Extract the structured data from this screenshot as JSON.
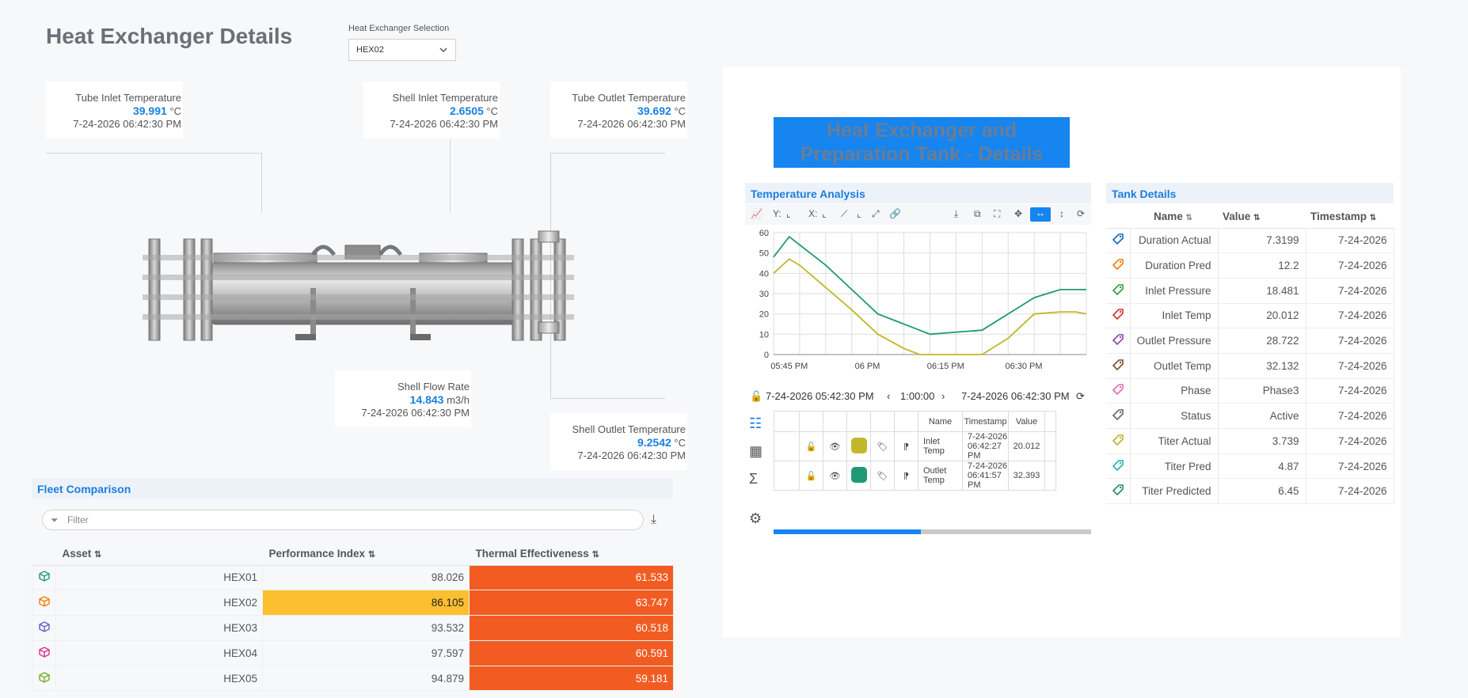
{
  "page": {
    "title": "Heat Exchanger Details"
  },
  "selection": {
    "label": "Heat Exchanger Selection",
    "value": "HEX02"
  },
  "callouts": {
    "tube_inlet": {
      "name": "Tube Inlet Temperature",
      "value": "39.991",
      "unit": "°C",
      "time": "7-24-2026 06:42:30 PM"
    },
    "shell_inlet": {
      "name": "Shell Inlet Temperature",
      "value": "2.6505",
      "unit": "°C",
      "time": "7-24-2026 06:42:30 PM"
    },
    "tube_outlet": {
      "name": "Tube Outlet Temperature",
      "value": "39.692",
      "unit": "°C",
      "time": "7-24-2026 06:42:30 PM"
    },
    "shell_flow": {
      "name": "Shell Flow Rate",
      "value": "14.843",
      "unit": "m3/h",
      "time": "7-24-2026 06:42:30 PM"
    },
    "shell_outlet": {
      "name": "Shell Outlet Temperature",
      "value": "9.2542",
      "unit": "°C",
      "time": "7-24-2026 06:42:30 PM"
    }
  },
  "banner": {
    "line1": "Heat Exchanger and",
    "line2": "Preparation Tank - Details"
  },
  "temperature": {
    "header": "Temperature Analysis",
    "toolbar": {
      "y": "Y:",
      "x": "X:"
    },
    "range": {
      "start": "7-24-2026 05:42:30 PM",
      "duration": "1:00:00",
      "end": "7-24-2026 06:42:30 PM"
    },
    "signals_header": {
      "name": "Name",
      "timestamp": "Timestamp",
      "value": "Value"
    },
    "signals": [
      {
        "name": "Inlet Temp",
        "timestamp": "7-24-2026 06:42:27 PM",
        "value": "20.012",
        "color": "#c2b72a"
      },
      {
        "name": "Outlet Temp",
        "timestamp": "7-24-2026 06:41:57 PM",
        "value": "32.393",
        "color": "#1e9a74"
      }
    ]
  },
  "chart_data": {
    "type": "line",
    "title": "",
    "xlabel": "",
    "ylabel": "",
    "ylim": [
      0,
      60
    ],
    "yticks": [
      0,
      10,
      20,
      30,
      40,
      50,
      60
    ],
    "xticks": [
      "05:45 PM",
      "06 PM",
      "06:15 PM",
      "06:30 PM"
    ],
    "x": [
      0,
      3,
      5,
      10,
      15,
      20,
      25,
      28,
      30,
      35,
      40,
      45,
      50,
      55,
      58,
      60
    ],
    "series": [
      {
        "name": "Inlet Temp",
        "color": "#c2b72a",
        "values": [
          40,
          47,
          44,
          33,
          22,
          10,
          3,
          0,
          0,
          0,
          0,
          8,
          20,
          21,
          21,
          20
        ]
      },
      {
        "name": "Outlet Temp",
        "color": "#1e9a74",
        "values": [
          48,
          58,
          54,
          44,
          32,
          20,
          15,
          12,
          10,
          11,
          12,
          20,
          28,
          32,
          32,
          32
        ]
      }
    ]
  },
  "tank": {
    "header": "Tank Details",
    "columns": {
      "name": "Name",
      "value": "Value",
      "timestamp": "Timestamp"
    },
    "rows": [
      {
        "name": "Duration Actual",
        "value": "7.3199",
        "timestamp": "7-24-2026",
        "color": "#1565c0"
      },
      {
        "name": "Duration Pred",
        "value": "12.2",
        "timestamp": "7-24-2026",
        "color": "#f57c00"
      },
      {
        "name": "Inlet Pressure",
        "value": "18.481",
        "timestamp": "7-24-2026",
        "color": "#2e9a3e"
      },
      {
        "name": "Inlet Temp",
        "value": "20.012",
        "timestamp": "7-24-2026",
        "color": "#d32f2f"
      },
      {
        "name": "Outlet Pressure",
        "value": "28.722",
        "timestamp": "7-24-2026",
        "color": "#8e44ad"
      },
      {
        "name": "Outlet Temp",
        "value": "32.132",
        "timestamp": "7-24-2026",
        "color": "#7b4b2a"
      },
      {
        "name": "Phase",
        "value": "Phase3",
        "timestamp": "7-24-2026",
        "color": "#e86ab0"
      },
      {
        "name": "Status",
        "value": "Active",
        "timestamp": "7-24-2026",
        "color": "#666666"
      },
      {
        "name": "Titer Actual",
        "value": "3.739",
        "timestamp": "7-24-2026",
        "color": "#b5b52a"
      },
      {
        "name": "Titer Pred",
        "value": "4.87",
        "timestamp": "7-24-2026",
        "color": "#20b2aa"
      },
      {
        "name": "Titer Predicted",
        "value": "6.45",
        "timestamp": "7-24-2026",
        "color": "#1e8a62"
      }
    ]
  },
  "fleet": {
    "header": "Fleet Comparison",
    "filter_placeholder": "Filter",
    "columns": {
      "asset": "Asset",
      "performance": "Performance Index",
      "thermal": "Thermal Effectiveness"
    },
    "colors": {
      "orange": "#f25c22",
      "amber": "#fbbf30"
    },
    "rows": [
      {
        "asset": "HEX01",
        "performance": "98.026",
        "thermal": "61.533",
        "icon_color": "#1e9a74",
        "perf_highlight": false
      },
      {
        "asset": "HEX02",
        "performance": "86.105",
        "thermal": "63.747",
        "icon_color": "#f57c00",
        "perf_highlight": true
      },
      {
        "asset": "HEX03",
        "performance": "93.532",
        "thermal": "60.518",
        "icon_color": "#6a5acd",
        "perf_highlight": false
      },
      {
        "asset": "HEX04",
        "performance": "97.597",
        "thermal": "60.591",
        "icon_color": "#d63384",
        "perf_highlight": false
      },
      {
        "asset": "HEX05",
        "performance": "94.879",
        "thermal": "59.181",
        "icon_color": "#6fae2a",
        "perf_highlight": false
      }
    ]
  }
}
